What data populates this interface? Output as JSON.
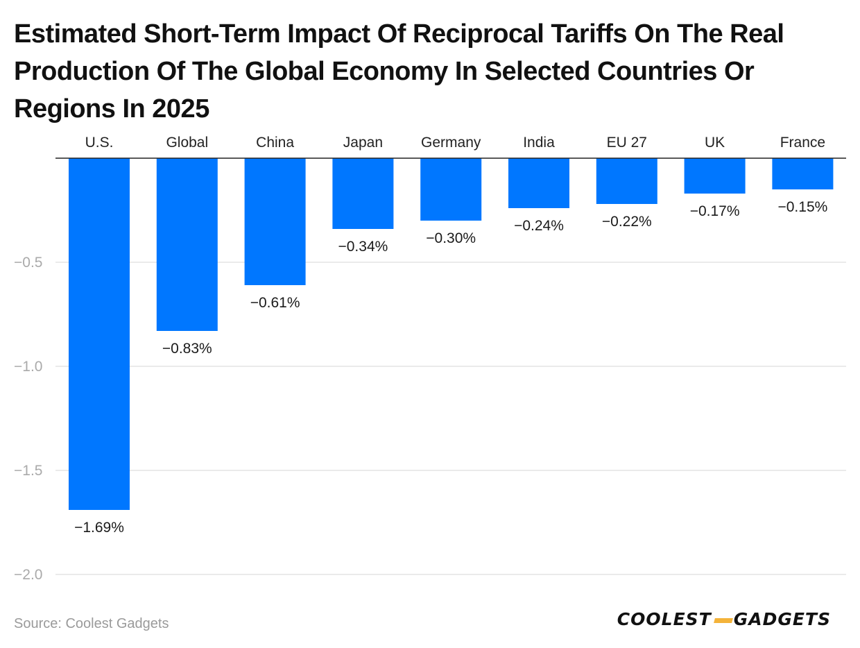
{
  "chart_data": {
    "type": "bar",
    "title": "Estimated Short-Term Impact Of Reciprocal Tariffs On The Real Production Of The Global Economy In Selected Countries Or Regions In 2025",
    "categories": [
      "U.S.",
      "Global",
      "China",
      "Japan",
      "Germany",
      "India",
      "EU 27",
      "UK",
      "France"
    ],
    "values": [
      -1.69,
      -0.83,
      -0.61,
      -0.34,
      -0.3,
      -0.24,
      -0.22,
      -0.17,
      -0.15
    ],
    "value_labels": [
      "−1.69%",
      "−0.83%",
      "−0.61%",
      "−0.34%",
      "−0.30%",
      "−0.24%",
      "−0.22%",
      "−0.17%",
      "−0.15%"
    ],
    "y_ticks": [
      -0.5,
      -1.0,
      -1.5,
      -2.0
    ],
    "y_tick_labels": [
      "−0.5",
      "−1.0",
      "−1.5",
      "−2.0"
    ],
    "ylim": [
      -2.0,
      0
    ],
    "xlabel": "",
    "ylabel": "",
    "grid": true,
    "bar_color": "#0077ff"
  },
  "footer": {
    "source": "Source: Coolest Gadgets",
    "brand_left": "COOLEST",
    "brand_right": "GADGETS"
  }
}
